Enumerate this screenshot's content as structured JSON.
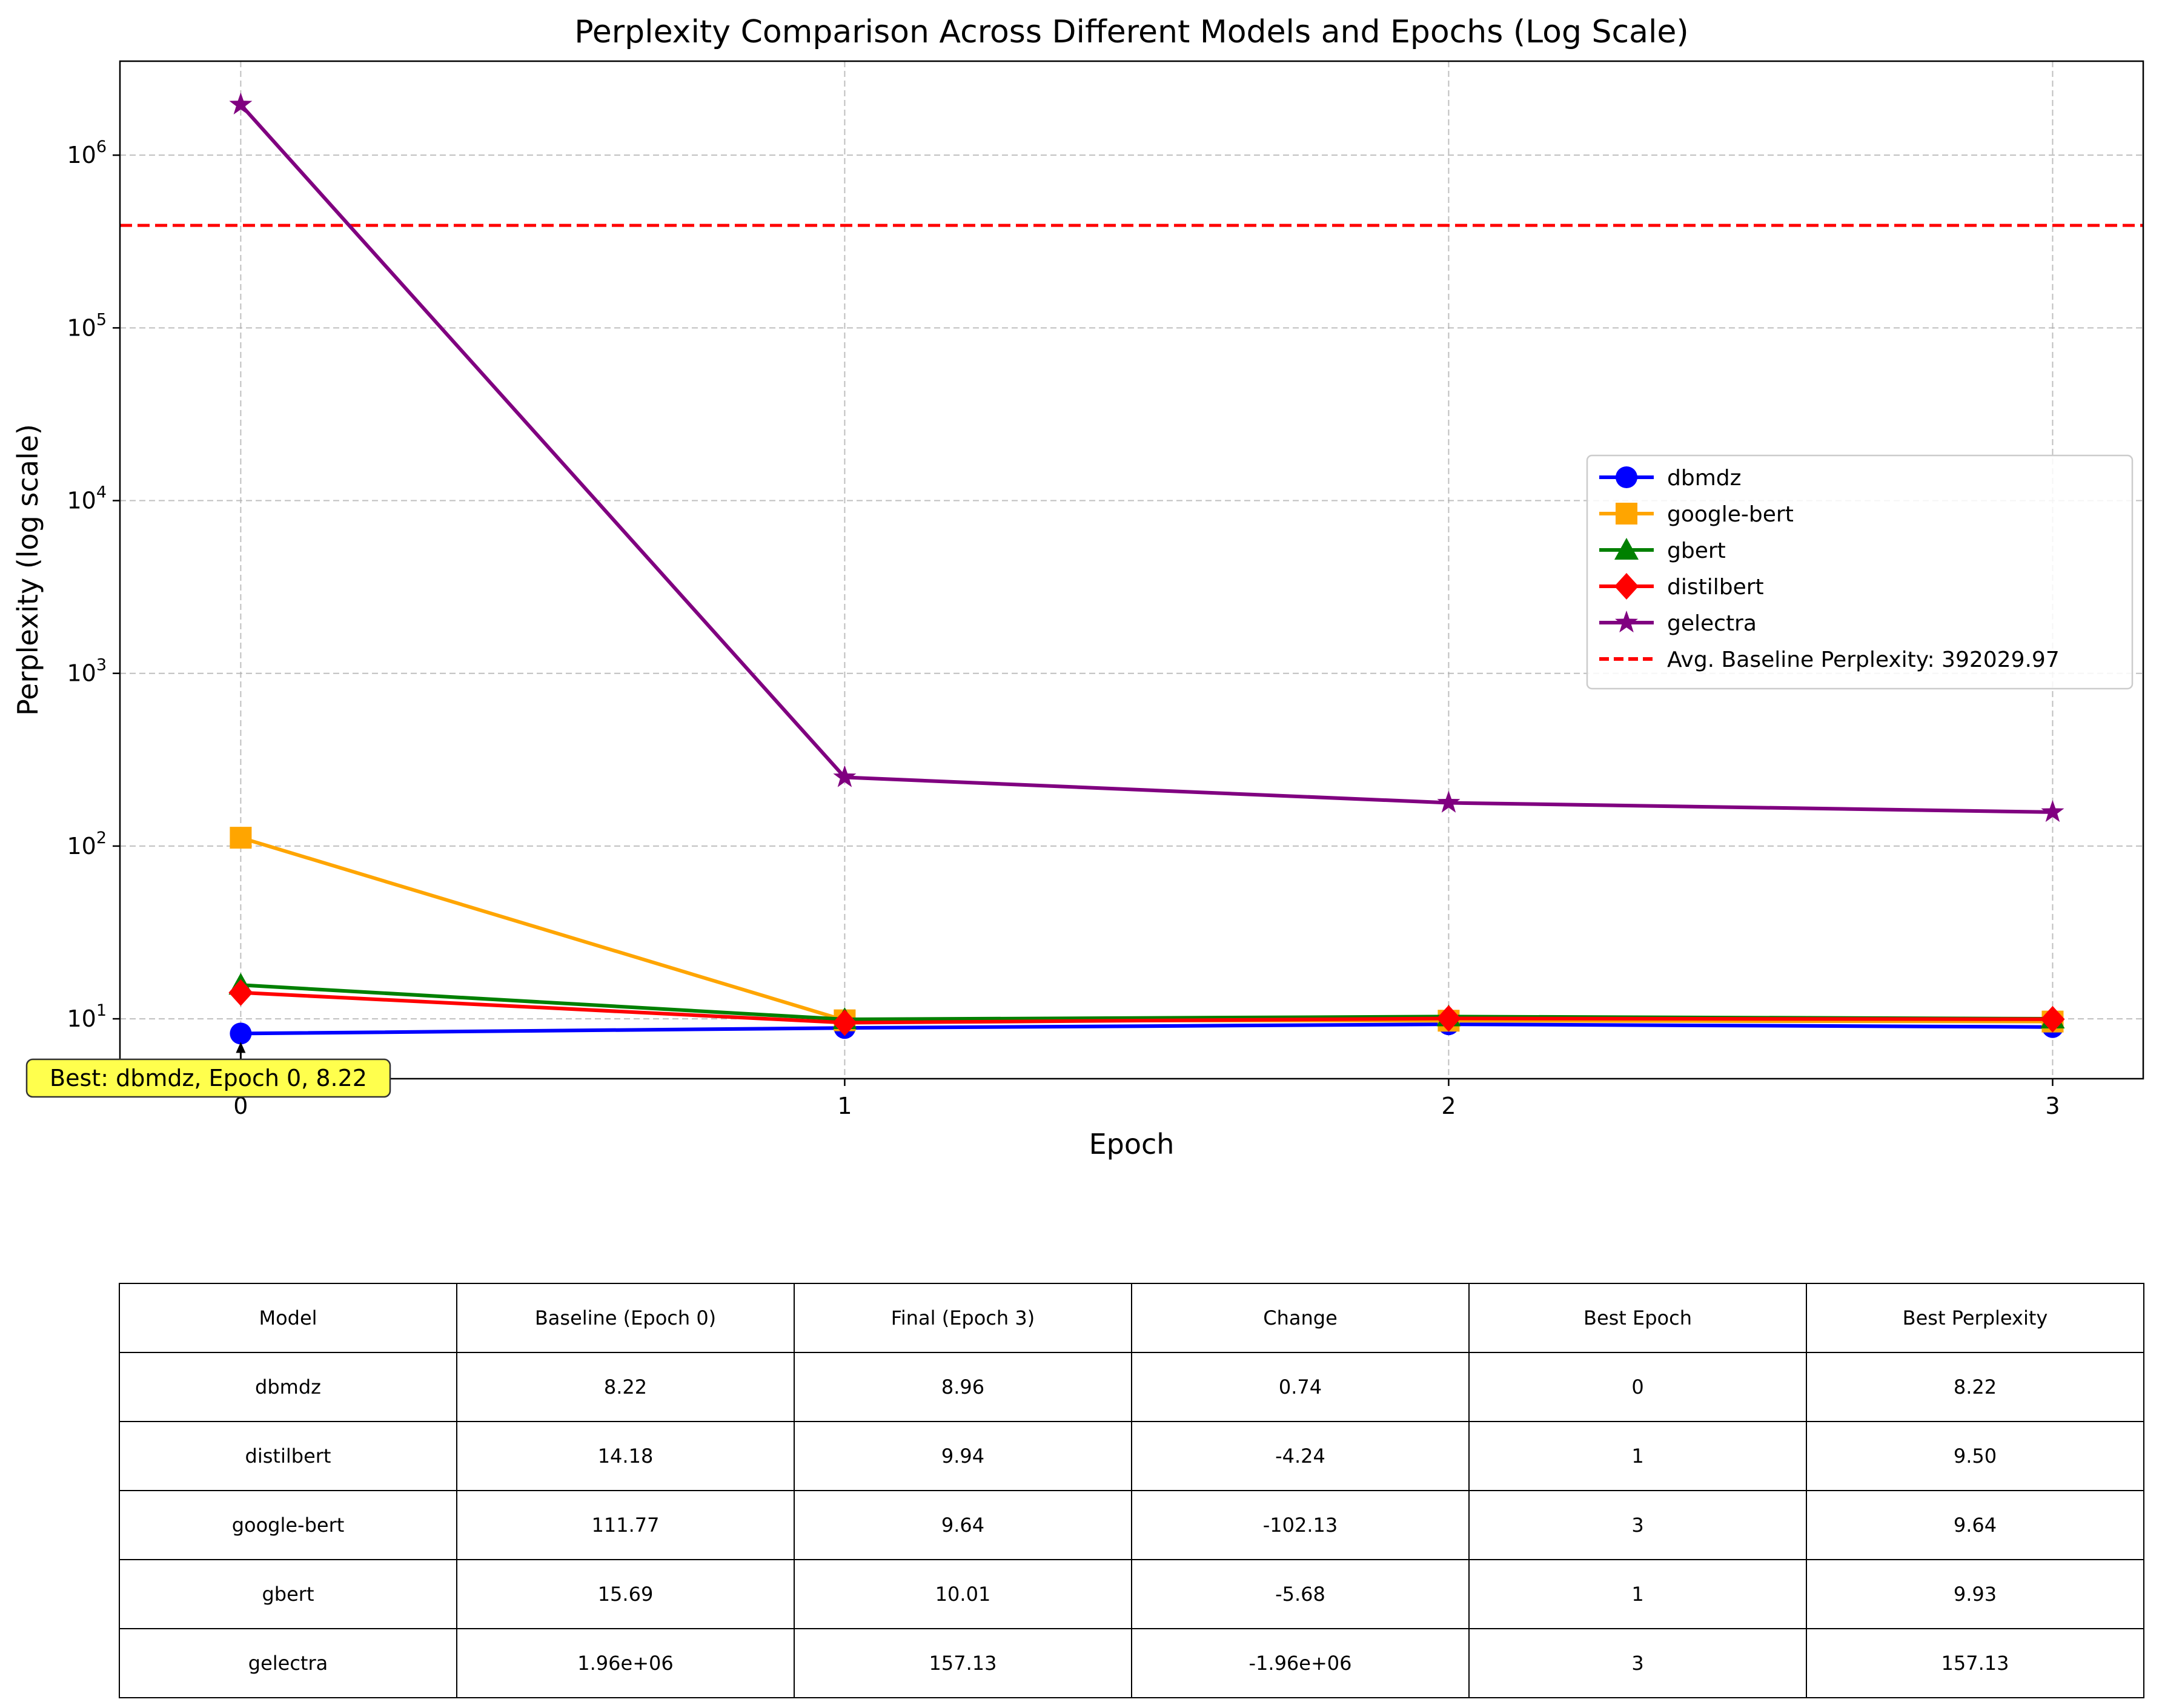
{
  "chart_data": {
    "type": "line",
    "title": "Perplexity Comparison Across Different Models and Epochs (Log Scale)",
    "xlabel": "Epoch",
    "ylabel": "Perplexity (log scale)",
    "x": [
      0,
      1,
      2,
      3
    ],
    "x_ticks": [
      "0",
      "1",
      "2",
      "3"
    ],
    "y_scale": "log",
    "y_ticks": [
      {
        "value": 10,
        "base": "10",
        "exp": "1"
      },
      {
        "value": 100,
        "base": "10",
        "exp": "2"
      },
      {
        "value": 1000,
        "base": "10",
        "exp": "3"
      },
      {
        "value": 10000,
        "base": "10",
        "exp": "4"
      },
      {
        "value": 100000,
        "base": "10",
        "exp": "5"
      },
      {
        "value": 1000000,
        "base": "10",
        "exp": "6"
      }
    ],
    "xlim": [
      -0.2,
      3.15
    ],
    "ylim": [
      4.5,
      3500000
    ],
    "grid": true,
    "legend_position": "center-right",
    "series": [
      {
        "name": "dbmdz",
        "color": "#0000ff",
        "marker": "circle",
        "values": [
          8.22,
          8.85,
          9.3,
          8.96
        ]
      },
      {
        "name": "google-bert",
        "color": "#ffa500",
        "marker": "square",
        "values": [
          111.77,
          9.8,
          9.75,
          9.64
        ]
      },
      {
        "name": "gbert",
        "color": "#008000",
        "marker": "triangle",
        "values": [
          15.69,
          9.93,
          10.3,
          10.01
        ]
      },
      {
        "name": "distilbert",
        "color": "#ff0000",
        "marker": "diamond",
        "values": [
          14.18,
          9.5,
          10.05,
          9.94
        ]
      },
      {
        "name": "gelectra",
        "color": "#800080",
        "marker": "star",
        "values": [
          1960000,
          250,
          178,
          157.13
        ]
      }
    ],
    "reference_line": {
      "label": "Avg. Baseline Perplexity: 392029.97",
      "value": 392029.97,
      "color": "#ff0000",
      "style": "dashed"
    },
    "annotation": {
      "text": "Best: dbmdz, Epoch 0, 8.22",
      "x": 0,
      "y": 8.22,
      "background": "#ffff4d"
    }
  },
  "table": {
    "headers": [
      "Model",
      "Baseline (Epoch 0)",
      "Final (Epoch 3)",
      "Change",
      "Best Epoch",
      "Best Perplexity"
    ],
    "rows": [
      [
        "dbmdz",
        "8.22",
        "8.96",
        "0.74",
        "0",
        "8.22"
      ],
      [
        "distilbert",
        "14.18",
        "9.94",
        "-4.24",
        "1",
        "9.50"
      ],
      [
        "google-bert",
        "111.77",
        "9.64",
        "-102.13",
        "3",
        "9.64"
      ],
      [
        "gbert",
        "15.69",
        "10.01",
        "-5.68",
        "1",
        "9.93"
      ],
      [
        "gelectra",
        "1.96e+06",
        "157.13",
        "-1.96e+06",
        "3",
        "157.13"
      ]
    ]
  }
}
